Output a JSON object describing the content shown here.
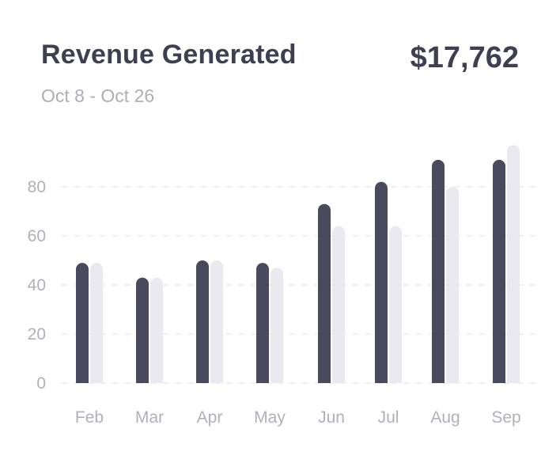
{
  "header": {
    "title": "Revenue Generated",
    "subtitle": "Oct 8 - Oct 26",
    "total": "$17,762"
  },
  "colors": {
    "primary": "#4a4a5e",
    "secondary": "#e9e9ef",
    "grid": "#ececf1",
    "tick": "#b0b0bb"
  },
  "chart_data": {
    "type": "bar",
    "categories": [
      "Feb",
      "Mar",
      "Apr",
      "May",
      "Jun",
      "Jul",
      "Aug",
      "Sep"
    ],
    "series": [
      {
        "values": [
          49,
          43,
          50,
          49,
          73,
          82,
          91,
          91
        ]
      },
      {
        "values": [
          49,
          43,
          50,
          47,
          64,
          64,
          80,
          97
        ]
      }
    ],
    "yticks": [
      0,
      20,
      40,
      60,
      80
    ],
    "ylim": [
      0,
      100
    ],
    "grid": true,
    "legend": "none"
  }
}
